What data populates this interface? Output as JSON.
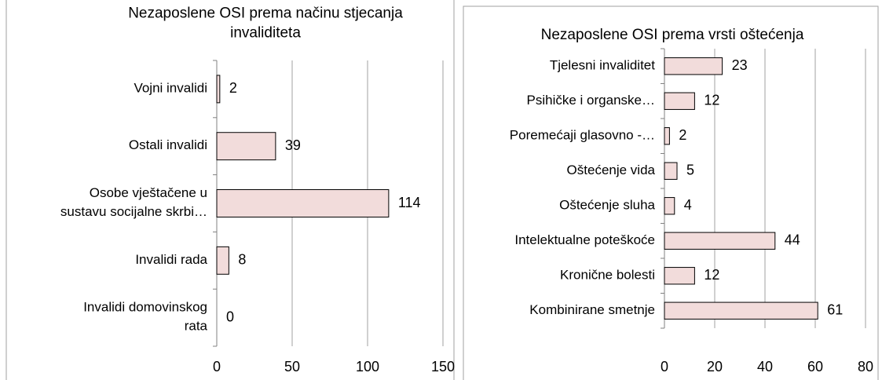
{
  "chart_data": [
    {
      "type": "bar",
      "orientation": "horizontal",
      "title": "Nezaposlene OSI prema načinu stjecanja invaliditeta",
      "categories": [
        "Vojni invalidi",
        "Ostali invalidi",
        "Osobe vještačene u sustavu socijalne skrbi…",
        "Invalidi rada",
        "Invalidi domovinskog rata"
      ],
      "values": [
        2,
        39,
        114,
        8,
        0
      ],
      "color": "#f2dcdb",
      "xlim": [
        0,
        150
      ],
      "xticks": [
        0,
        50,
        100,
        150
      ],
      "grid": true
    },
    {
      "type": "bar",
      "orientation": "horizontal",
      "title": "Nezaposlene OSI prema vrsti oštećenja",
      "categories": [
        "Tjelesni invaliditet",
        "Psihičke i organske…",
        "Poremećaji glasovno -…",
        "Oštećenje vida",
        "Oštećenje sluha",
        "Intelektualne poteškoće",
        "Kronične bolesti",
        "Kombinirane smetnje"
      ],
      "values": [
        23,
        12,
        2,
        5,
        4,
        44,
        12,
        61
      ],
      "color": "#f2dcdb",
      "xlim": [
        0,
        80
      ],
      "xticks": [
        0,
        20,
        40,
        60,
        80
      ],
      "grid": true
    }
  ]
}
